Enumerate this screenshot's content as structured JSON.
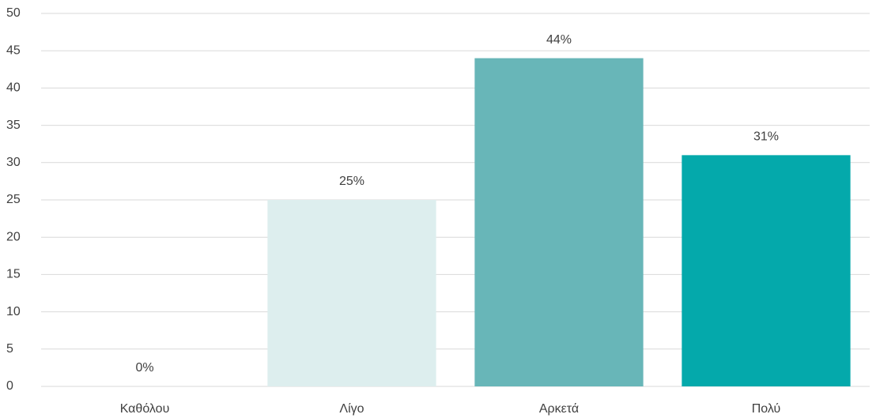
{
  "chart_data": {
    "type": "bar",
    "categories": [
      "Καθόλου",
      "Λίγο",
      "Αρκετά",
      "Πολύ"
    ],
    "values": [
      0,
      25,
      44,
      31
    ],
    "value_labels": [
      "0%",
      "25%",
      "44%",
      "31%"
    ],
    "colors": [
      "#dff0f0",
      "#ddeeee",
      "#68b6b8",
      "#04a9ab"
    ],
    "ylim": [
      0,
      50
    ],
    "yticks": [
      0,
      5,
      10,
      15,
      20,
      25,
      30,
      35,
      40,
      45,
      50
    ],
    "grid": true
  }
}
